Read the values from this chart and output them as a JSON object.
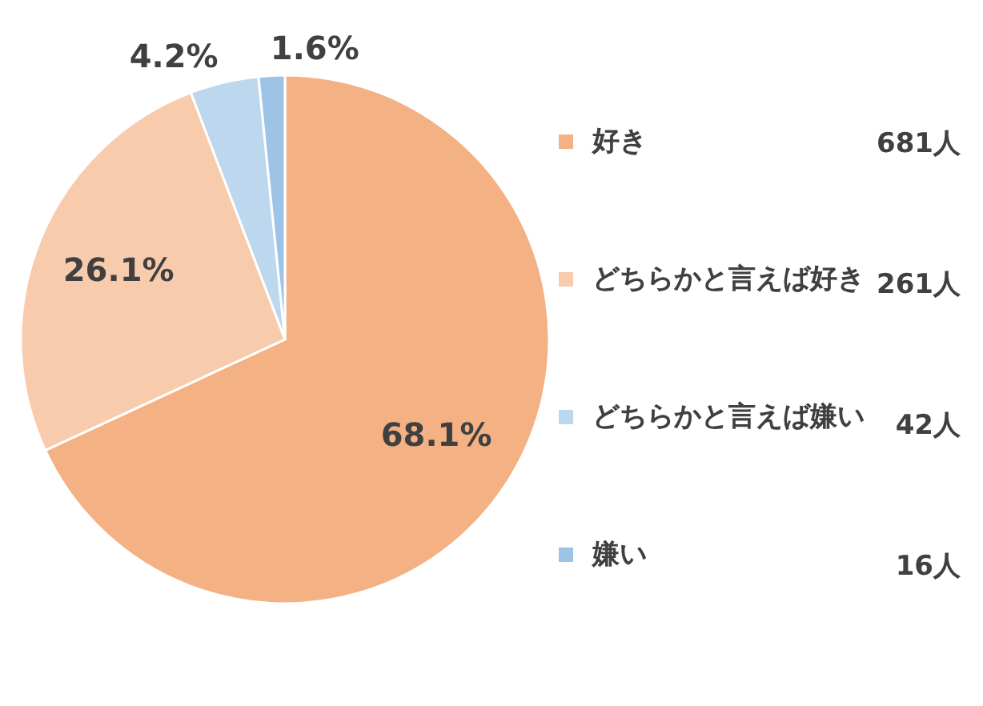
{
  "chart_data": {
    "type": "pie",
    "categories": [
      "好き",
      "どちらかと言えば好き",
      "どちらかと言えば嫌い",
      "嫌い"
    ],
    "values": [
      68.1,
      26.1,
      4.2,
      1.6
    ],
    "value_labels": [
      "68.1%",
      "26.1%",
      "4.2%",
      "1.6%"
    ],
    "colors": [
      "#f4b183",
      "#f8cbad",
      "#bdd7ee",
      "#9dc3e6"
    ],
    "legend": "right",
    "annotations": [
      "681人",
      "261人",
      "42人",
      "16人"
    ]
  }
}
